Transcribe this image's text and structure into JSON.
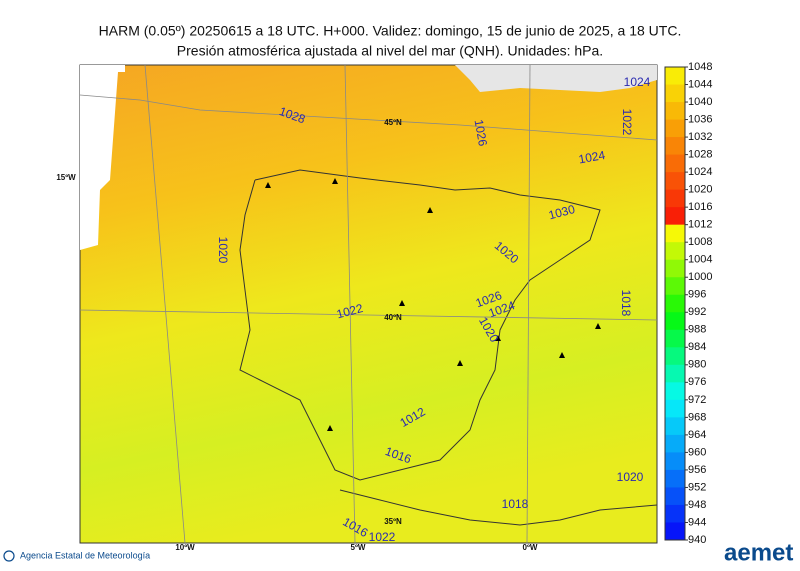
{
  "header": {
    "title": "HARM (0.05º) 20250615 a 18 UTC. H+000. Validez: domingo, 15 de junio de 2025, a 18 UTC.",
    "subtitle": "Presión atmosférica ajustada al nivel del mar (QNH). Unidades: hPa."
  },
  "map": {
    "graticule_labels": [
      "45ºN",
      "15ºW",
      "40ºN",
      "10ºW",
      "5ºW",
      "0ºW",
      "35ºN"
    ],
    "contour_labels": [
      "1028",
      "1026",
      "1024",
      "1022",
      "1024",
      "1030",
      "1020",
      "1020",
      "1026",
      "1024",
      "1020",
      "1022",
      "1018",
      "1012",
      "1016",
      "1018",
      "1020",
      "1016",
      "1022"
    ]
  },
  "colorbar": {
    "ticks": [
      1048,
      1044,
      1040,
      1036,
      1032,
      1028,
      1024,
      1020,
      1016,
      1012,
      1008,
      1004,
      1000,
      996,
      992,
      988,
      984,
      980,
      976,
      972,
      968,
      964,
      960,
      956,
      952,
      948,
      944,
      940
    ]
  },
  "footer": {
    "agency": "Agencia Estatal de Meteorología",
    "logo": "aemet"
  }
}
